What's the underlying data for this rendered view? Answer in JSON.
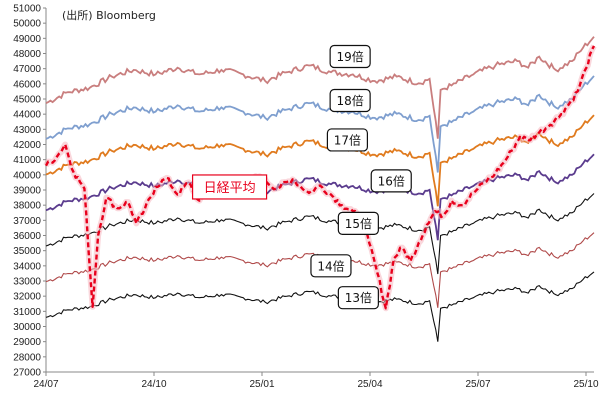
{
  "source_label": "(出所)  Bloomberg",
  "chart_data": {
    "type": "line",
    "title": "",
    "xlabel": "",
    "ylabel": "",
    "ylim": [
      27000,
      51000
    ],
    "ytick_step": 1000,
    "x_ticks": [
      "24/07",
      "24/10",
      "25/01",
      "25/04",
      "25/07",
      "25/10"
    ],
    "grid": false,
    "bands": [
      {
        "label": "19倍",
        "color": "#c97e7e",
        "anchor": {
          "x": 0.555,
          "y": 47800
        }
      },
      {
        "label": "18倍",
        "color": "#7f9fcf",
        "anchor": {
          "x": 0.555,
          "y": 44900
        }
      },
      {
        "label": "17倍",
        "color": "#e07b1f",
        "anchor": {
          "x": 0.55,
          "y": 42300
        }
      },
      {
        "label": "16倍",
        "color": "#5b3c8e",
        "anchor": {
          "x": 0.63,
          "y": 39600
        }
      },
      {
        "label": "15倍",
        "color": "#111111",
        "anchor": {
          "x": 0.57,
          "y": 36800
        }
      },
      {
        "label": "14倍",
        "color": "#b04a4a",
        "anchor": {
          "x": 0.52,
          "y": 34000
        }
      },
      {
        "label": "13倍",
        "color": "#111111",
        "anchor": {
          "x": 0.57,
          "y": 31900
        }
      }
    ],
    "bands_note": "each band = EPS x multiple; base band (13倍) points below",
    "base_points": [
      [
        0.0,
        30600
      ],
      [
        0.04,
        31100
      ],
      [
        0.08,
        31300
      ],
      [
        0.12,
        31800
      ],
      [
        0.16,
        32100
      ],
      [
        0.2,
        31900
      ],
      [
        0.24,
        32200
      ],
      [
        0.28,
        31900
      ],
      [
        0.32,
        32100
      ],
      [
        0.36,
        31900
      ],
      [
        0.4,
        31600
      ],
      [
        0.44,
        32000
      ],
      [
        0.48,
        32300
      ],
      [
        0.52,
        32000
      ],
      [
        0.56,
        31900
      ],
      [
        0.6,
        31600
      ],
      [
        0.64,
        31800
      ],
      [
        0.68,
        31500
      ],
      [
        0.7,
        31700
      ],
      [
        0.715,
        29000
      ],
      [
        0.72,
        31200
      ],
      [
        0.74,
        31400
      ],
      [
        0.78,
        31900
      ],
      [
        0.82,
        32300
      ],
      [
        0.86,
        32500
      ],
      [
        0.88,
        32200
      ],
      [
        0.9,
        32700
      ],
      [
        0.93,
        32100
      ],
      [
        0.96,
        32500
      ],
      [
        0.98,
        33100
      ],
      [
        1.0,
        33600
      ]
    ],
    "multiples": [
      19,
      18,
      17,
      16,
      15,
      14,
      13
    ],
    "nikkei": {
      "label": "日経平均",
      "color": "#e8001c",
      "points": [
        [
          0.0,
          40600
        ],
        [
          0.02,
          41200
        ],
        [
          0.035,
          42000
        ],
        [
          0.05,
          40200
        ],
        [
          0.07,
          39100
        ],
        [
          0.085,
          31300
        ],
        [
          0.095,
          36000
        ],
        [
          0.11,
          38500
        ],
        [
          0.13,
          37800
        ],
        [
          0.15,
          38200
        ],
        [
          0.165,
          36800
        ],
        [
          0.18,
          37700
        ],
        [
          0.2,
          39200
        ],
        [
          0.22,
          39800
        ],
        [
          0.24,
          38700
        ],
        [
          0.26,
          39500
        ],
        [
          0.28,
          38300
        ],
        [
          0.3,
          39300
        ],
        [
          0.33,
          38600
        ],
        [
          0.36,
          39400
        ],
        [
          0.39,
          39900
        ],
        [
          0.42,
          39100
        ],
        [
          0.45,
          39700
        ],
        [
          0.48,
          38800
        ],
        [
          0.5,
          39300
        ],
        [
          0.52,
          38700
        ],
        [
          0.54,
          38000
        ],
        [
          0.56,
          37600
        ],
        [
          0.575,
          37000
        ],
        [
          0.59,
          35500
        ],
        [
          0.605,
          33500
        ],
        [
          0.62,
          31200
        ],
        [
          0.635,
          34500
        ],
        [
          0.65,
          35200
        ],
        [
          0.665,
          34300
        ],
        [
          0.68,
          35500
        ],
        [
          0.695,
          36700
        ],
        [
          0.71,
          37600
        ],
        [
          0.725,
          37300
        ],
        [
          0.74,
          38300
        ],
        [
          0.76,
          38000
        ],
        [
          0.78,
          38800
        ],
        [
          0.8,
          39500
        ],
        [
          0.82,
          40100
        ],
        [
          0.835,
          40800
        ],
        [
          0.85,
          41600
        ],
        [
          0.865,
          42500
        ],
        [
          0.88,
          42300
        ],
        [
          0.9,
          42800
        ],
        [
          0.92,
          43300
        ],
        [
          0.94,
          44000
        ],
        [
          0.955,
          44700
        ],
        [
          0.97,
          45500
        ],
        [
          0.985,
          47000
        ],
        [
          1.0,
          48500
        ]
      ]
    }
  }
}
